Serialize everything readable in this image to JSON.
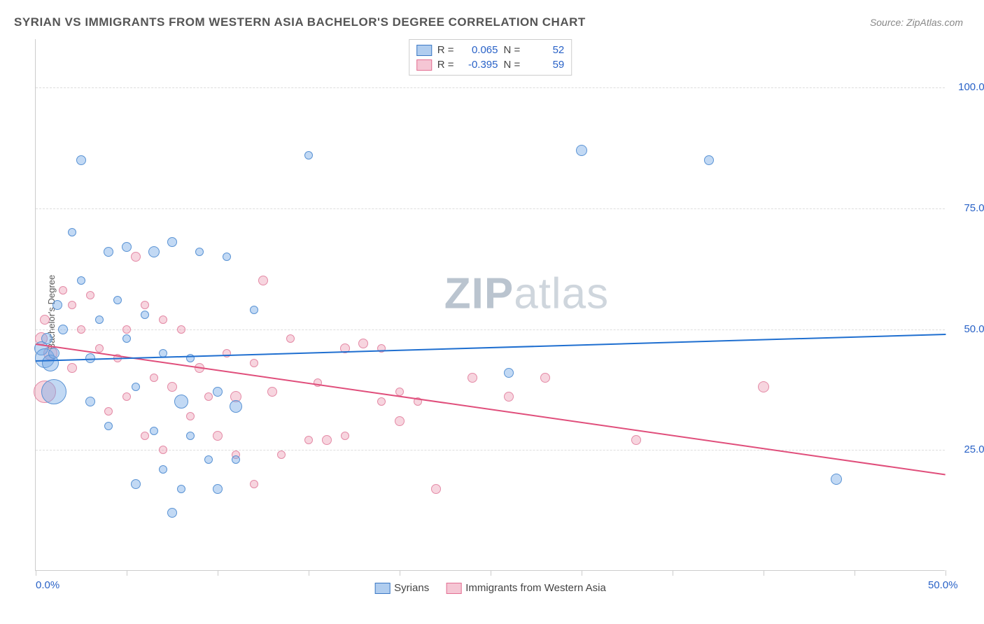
{
  "title": "SYRIAN VS IMMIGRANTS FROM WESTERN ASIA BACHELOR'S DEGREE CORRELATION CHART",
  "source": "Source: ZipAtlas.com",
  "ylabel": "Bachelor's Degree",
  "watermark_a": "ZIP",
  "watermark_b": "atlas",
  "chart": {
    "type": "scatter",
    "xlim": [
      0,
      50
    ],
    "ylim": [
      0,
      110
    ],
    "xticks": [
      0,
      5,
      10,
      15,
      20,
      25,
      30,
      35,
      40,
      45,
      50
    ],
    "xtick_labels": {
      "0": "0.0%",
      "50": "50.0%"
    },
    "yticks": [
      25,
      50,
      75,
      100
    ],
    "ytick_labels": [
      "25.0%",
      "50.0%",
      "75.0%",
      "100.0%"
    ],
    "background_color": "#ffffff",
    "grid_color": "#dddddd"
  },
  "legend_inset": [
    {
      "swatch_fill": "#b0cdef",
      "swatch_border": "#3b78c4",
      "r_label": "R =",
      "r_val": "0.065",
      "n_label": "N =",
      "n_val": "52"
    },
    {
      "swatch_fill": "#f5c6d4",
      "swatch_border": "#e36f93",
      "r_label": "R =",
      "r_val": "-0.395",
      "n_label": "N =",
      "n_val": "59"
    }
  ],
  "legend_bottom": [
    {
      "swatch_fill": "#b0cdef",
      "swatch_border": "#3b78c4",
      "label": "Syrians"
    },
    {
      "swatch_fill": "#f5c6d4",
      "swatch_border": "#e36f93",
      "label": "Immigrants from Western Asia"
    }
  ],
  "series": {
    "syrians": {
      "fill": "rgba(120,170,230,0.45)",
      "stroke": "#5a93d4",
      "trend_color": "#1f6fd0",
      "trend": {
        "x1": 0,
        "y1": 43.5,
        "x2": 50,
        "y2": 49
      },
      "points": [
        {
          "x": 0.3,
          "y": 46,
          "r": 10
        },
        {
          "x": 0.5,
          "y": 44,
          "r": 14
        },
        {
          "x": 0.6,
          "y": 48,
          "r": 8
        },
        {
          "x": 0.8,
          "y": 43,
          "r": 12
        },
        {
          "x": 1,
          "y": 45,
          "r": 8
        },
        {
          "x": 1,
          "y": 37,
          "r": 18
        },
        {
          "x": 1.2,
          "y": 55,
          "r": 7
        },
        {
          "x": 1.5,
          "y": 50,
          "r": 7
        },
        {
          "x": 2,
          "y": 70,
          "r": 6
        },
        {
          "x": 2.5,
          "y": 85,
          "r": 7
        },
        {
          "x": 2.5,
          "y": 60,
          "r": 6
        },
        {
          "x": 3,
          "y": 44,
          "r": 7
        },
        {
          "x": 3,
          "y": 35,
          "r": 7
        },
        {
          "x": 3.5,
          "y": 52,
          "r": 6
        },
        {
          "x": 4,
          "y": 66,
          "r": 7
        },
        {
          "x": 4,
          "y": 30,
          "r": 6
        },
        {
          "x": 4.5,
          "y": 56,
          "r": 6
        },
        {
          "x": 5,
          "y": 67,
          "r": 7
        },
        {
          "x": 5,
          "y": 48,
          "r": 6
        },
        {
          "x": 5.5,
          "y": 18,
          "r": 7
        },
        {
          "x": 5.5,
          "y": 38,
          "r": 6
        },
        {
          "x": 6,
          "y": 53,
          "r": 6
        },
        {
          "x": 6.5,
          "y": 66,
          "r": 8
        },
        {
          "x": 6.5,
          "y": 29,
          "r": 6
        },
        {
          "x": 7,
          "y": 45,
          "r": 6
        },
        {
          "x": 7,
          "y": 21,
          "r": 6
        },
        {
          "x": 7.5,
          "y": 68,
          "r": 7
        },
        {
          "x": 7.5,
          "y": 12,
          "r": 7
        },
        {
          "x": 8,
          "y": 35,
          "r": 10
        },
        {
          "x": 8,
          "y": 17,
          "r": 6
        },
        {
          "x": 8.5,
          "y": 28,
          "r": 6
        },
        {
          "x": 8.5,
          "y": 44,
          "r": 6
        },
        {
          "x": 9,
          "y": 66,
          "r": 6
        },
        {
          "x": 9.5,
          "y": 23,
          "r": 6
        },
        {
          "x": 10,
          "y": 37,
          "r": 7
        },
        {
          "x": 10,
          "y": 17,
          "r": 7
        },
        {
          "x": 10.5,
          "y": 65,
          "r": 6
        },
        {
          "x": 11,
          "y": 23,
          "r": 6
        },
        {
          "x": 11,
          "y": 34,
          "r": 9
        },
        {
          "x": 12,
          "y": 54,
          "r": 6
        },
        {
          "x": 15,
          "y": 86,
          "r": 6
        },
        {
          "x": 26,
          "y": 41,
          "r": 7
        },
        {
          "x": 30,
          "y": 87,
          "r": 8
        },
        {
          "x": 37,
          "y": 85,
          "r": 7
        },
        {
          "x": 44,
          "y": 19,
          "r": 8
        }
      ]
    },
    "western_asia": {
      "fill": "rgba(235,150,175,0.40)",
      "stroke": "#e48aa6",
      "trend_color": "#e04e7b",
      "trend": {
        "x1": 0,
        "y1": 47,
        "x2": 50,
        "y2": 20
      },
      "points": [
        {
          "x": 0.3,
          "y": 48,
          "r": 9
        },
        {
          "x": 0.5,
          "y": 52,
          "r": 7
        },
        {
          "x": 0.8,
          "y": 45,
          "r": 10
        },
        {
          "x": 0.5,
          "y": 37,
          "r": 16
        },
        {
          "x": 1.5,
          "y": 58,
          "r": 6
        },
        {
          "x": 2,
          "y": 55,
          "r": 6
        },
        {
          "x": 2,
          "y": 42,
          "r": 7
        },
        {
          "x": 2.5,
          "y": 50,
          "r": 6
        },
        {
          "x": 3,
          "y": 57,
          "r": 6
        },
        {
          "x": 3.5,
          "y": 46,
          "r": 6
        },
        {
          "x": 4,
          "y": 33,
          "r": 6
        },
        {
          "x": 4.5,
          "y": 44,
          "r": 6
        },
        {
          "x": 5,
          "y": 50,
          "r": 6
        },
        {
          "x": 5,
          "y": 36,
          "r": 6
        },
        {
          "x": 5.5,
          "y": 65,
          "r": 7
        },
        {
          "x": 6,
          "y": 55,
          "r": 6
        },
        {
          "x": 6,
          "y": 28,
          "r": 6
        },
        {
          "x": 6.5,
          "y": 40,
          "r": 6
        },
        {
          "x": 7,
          "y": 52,
          "r": 6
        },
        {
          "x": 7,
          "y": 25,
          "r": 6
        },
        {
          "x": 7.5,
          "y": 38,
          "r": 7
        },
        {
          "x": 8,
          "y": 50,
          "r": 6
        },
        {
          "x": 8.5,
          "y": 32,
          "r": 6
        },
        {
          "x": 9,
          "y": 42,
          "r": 7
        },
        {
          "x": 9.5,
          "y": 36,
          "r": 6
        },
        {
          "x": 10,
          "y": 28,
          "r": 7
        },
        {
          "x": 10.5,
          "y": 45,
          "r": 6
        },
        {
          "x": 11,
          "y": 24,
          "r": 6
        },
        {
          "x": 11,
          "y": 36,
          "r": 8
        },
        {
          "x": 12,
          "y": 43,
          "r": 6
        },
        {
          "x": 12,
          "y": 18,
          "r": 6
        },
        {
          "x": 12.5,
          "y": 60,
          "r": 7
        },
        {
          "x": 13,
          "y": 37,
          "r": 7
        },
        {
          "x": 13.5,
          "y": 24,
          "r": 6
        },
        {
          "x": 14,
          "y": 48,
          "r": 6
        },
        {
          "x": 15,
          "y": 27,
          "r": 6
        },
        {
          "x": 15.5,
          "y": 39,
          "r": 6
        },
        {
          "x": 16,
          "y": 27,
          "r": 7
        },
        {
          "x": 17,
          "y": 46,
          "r": 7
        },
        {
          "x": 17,
          "y": 28,
          "r": 6
        },
        {
          "x": 18,
          "y": 47,
          "r": 7
        },
        {
          "x": 19,
          "y": 35,
          "r": 6
        },
        {
          "x": 19,
          "y": 46,
          "r": 6
        },
        {
          "x": 20,
          "y": 31,
          "r": 7
        },
        {
          "x": 20,
          "y": 37,
          "r": 6
        },
        {
          "x": 21,
          "y": 35,
          "r": 6
        },
        {
          "x": 22,
          "y": 17,
          "r": 7
        },
        {
          "x": 24,
          "y": 40,
          "r": 7
        },
        {
          "x": 26,
          "y": 36,
          "r": 7
        },
        {
          "x": 28,
          "y": 40,
          "r": 7
        },
        {
          "x": 33,
          "y": 27,
          "r": 7
        },
        {
          "x": 40,
          "y": 38,
          "r": 8
        }
      ]
    }
  }
}
